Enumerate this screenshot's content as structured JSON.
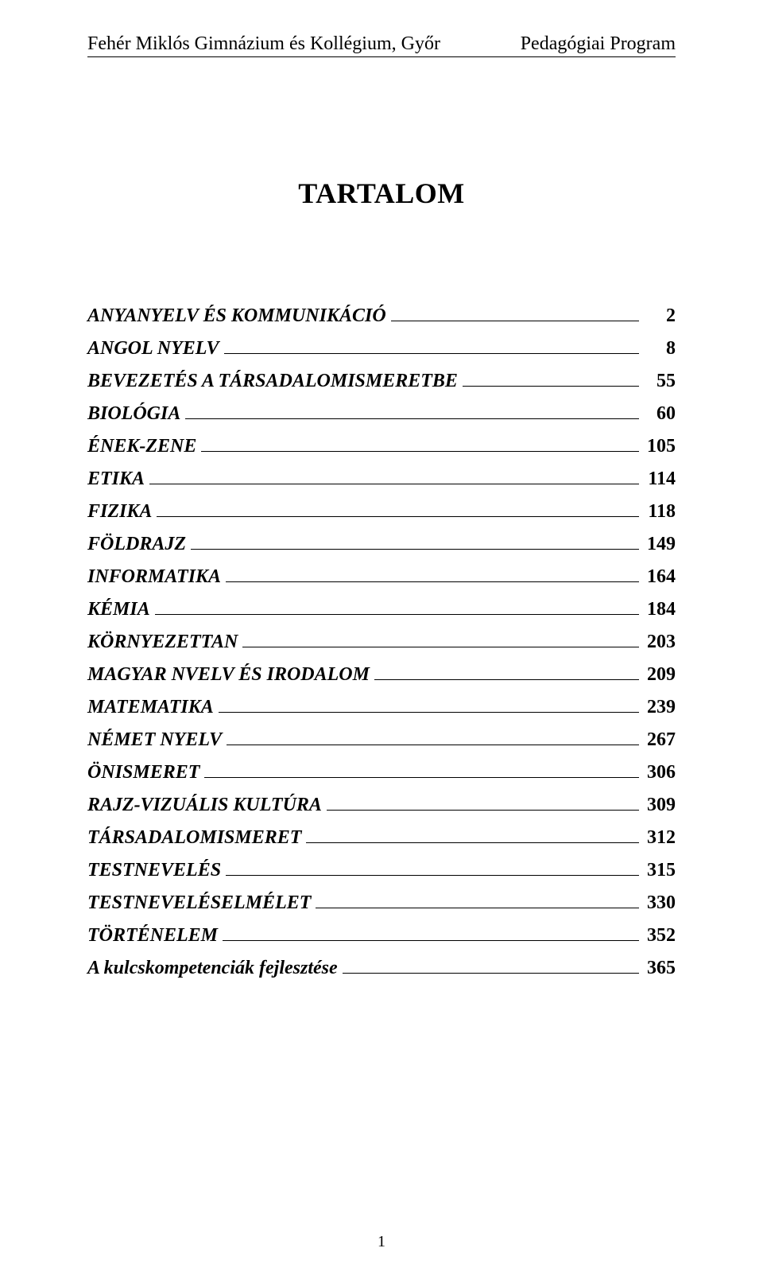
{
  "header": {
    "left": "Fehér Miklós Gimnázium és Kollégium, Győr",
    "right": "Pedagógiai Program"
  },
  "title": "TARTALOM",
  "toc": [
    {
      "label": "ANYANYELV ÉS KOMMUNIKÁCIÓ",
      "page": "2"
    },
    {
      "label": "ANGOL NYELV",
      "page": "8"
    },
    {
      "label": "BEVEZETÉS A TÁRSADALOMISMERETBE",
      "page": "55"
    },
    {
      "label": "BIOLÓGIA",
      "page": "60"
    },
    {
      "label": "ÉNEK-ZENE",
      "page": "105"
    },
    {
      "label": "ETIKA",
      "page": "114"
    },
    {
      "label": "FIZIKA",
      "page": "118"
    },
    {
      "label": "FÖLDRAJZ",
      "page": "149"
    },
    {
      "label": "INFORMATIKA",
      "page": "164"
    },
    {
      "label": "KÉMIA",
      "page": "184"
    },
    {
      "label": "KÖRNYEZETTAN",
      "page": "203"
    },
    {
      "label": "MAGYAR NVELV ÉS IRODALOM",
      "page": "209"
    },
    {
      "label": "MATEMATIKA",
      "page": "239"
    },
    {
      "label": "NÉMET NYELV",
      "page": "267"
    },
    {
      "label": "ÖNISMERET",
      "page": "306"
    },
    {
      "label": "RAJZ-VIZUÁLIS KULTÚRA",
      "page": "309"
    },
    {
      "label": "TÁRSADALOMISMERET",
      "page": "312"
    },
    {
      "label": "TESTNEVELÉS",
      "page": "315"
    },
    {
      "label": "TESTNEVELÉSELMÉLET",
      "page": "330"
    },
    {
      "label": "TÖRTÉNELEM",
      "page": "352"
    },
    {
      "label": "A kulcskompetenciák fejlesztése",
      "page": "365"
    }
  ],
  "footer_page_number": "1"
}
